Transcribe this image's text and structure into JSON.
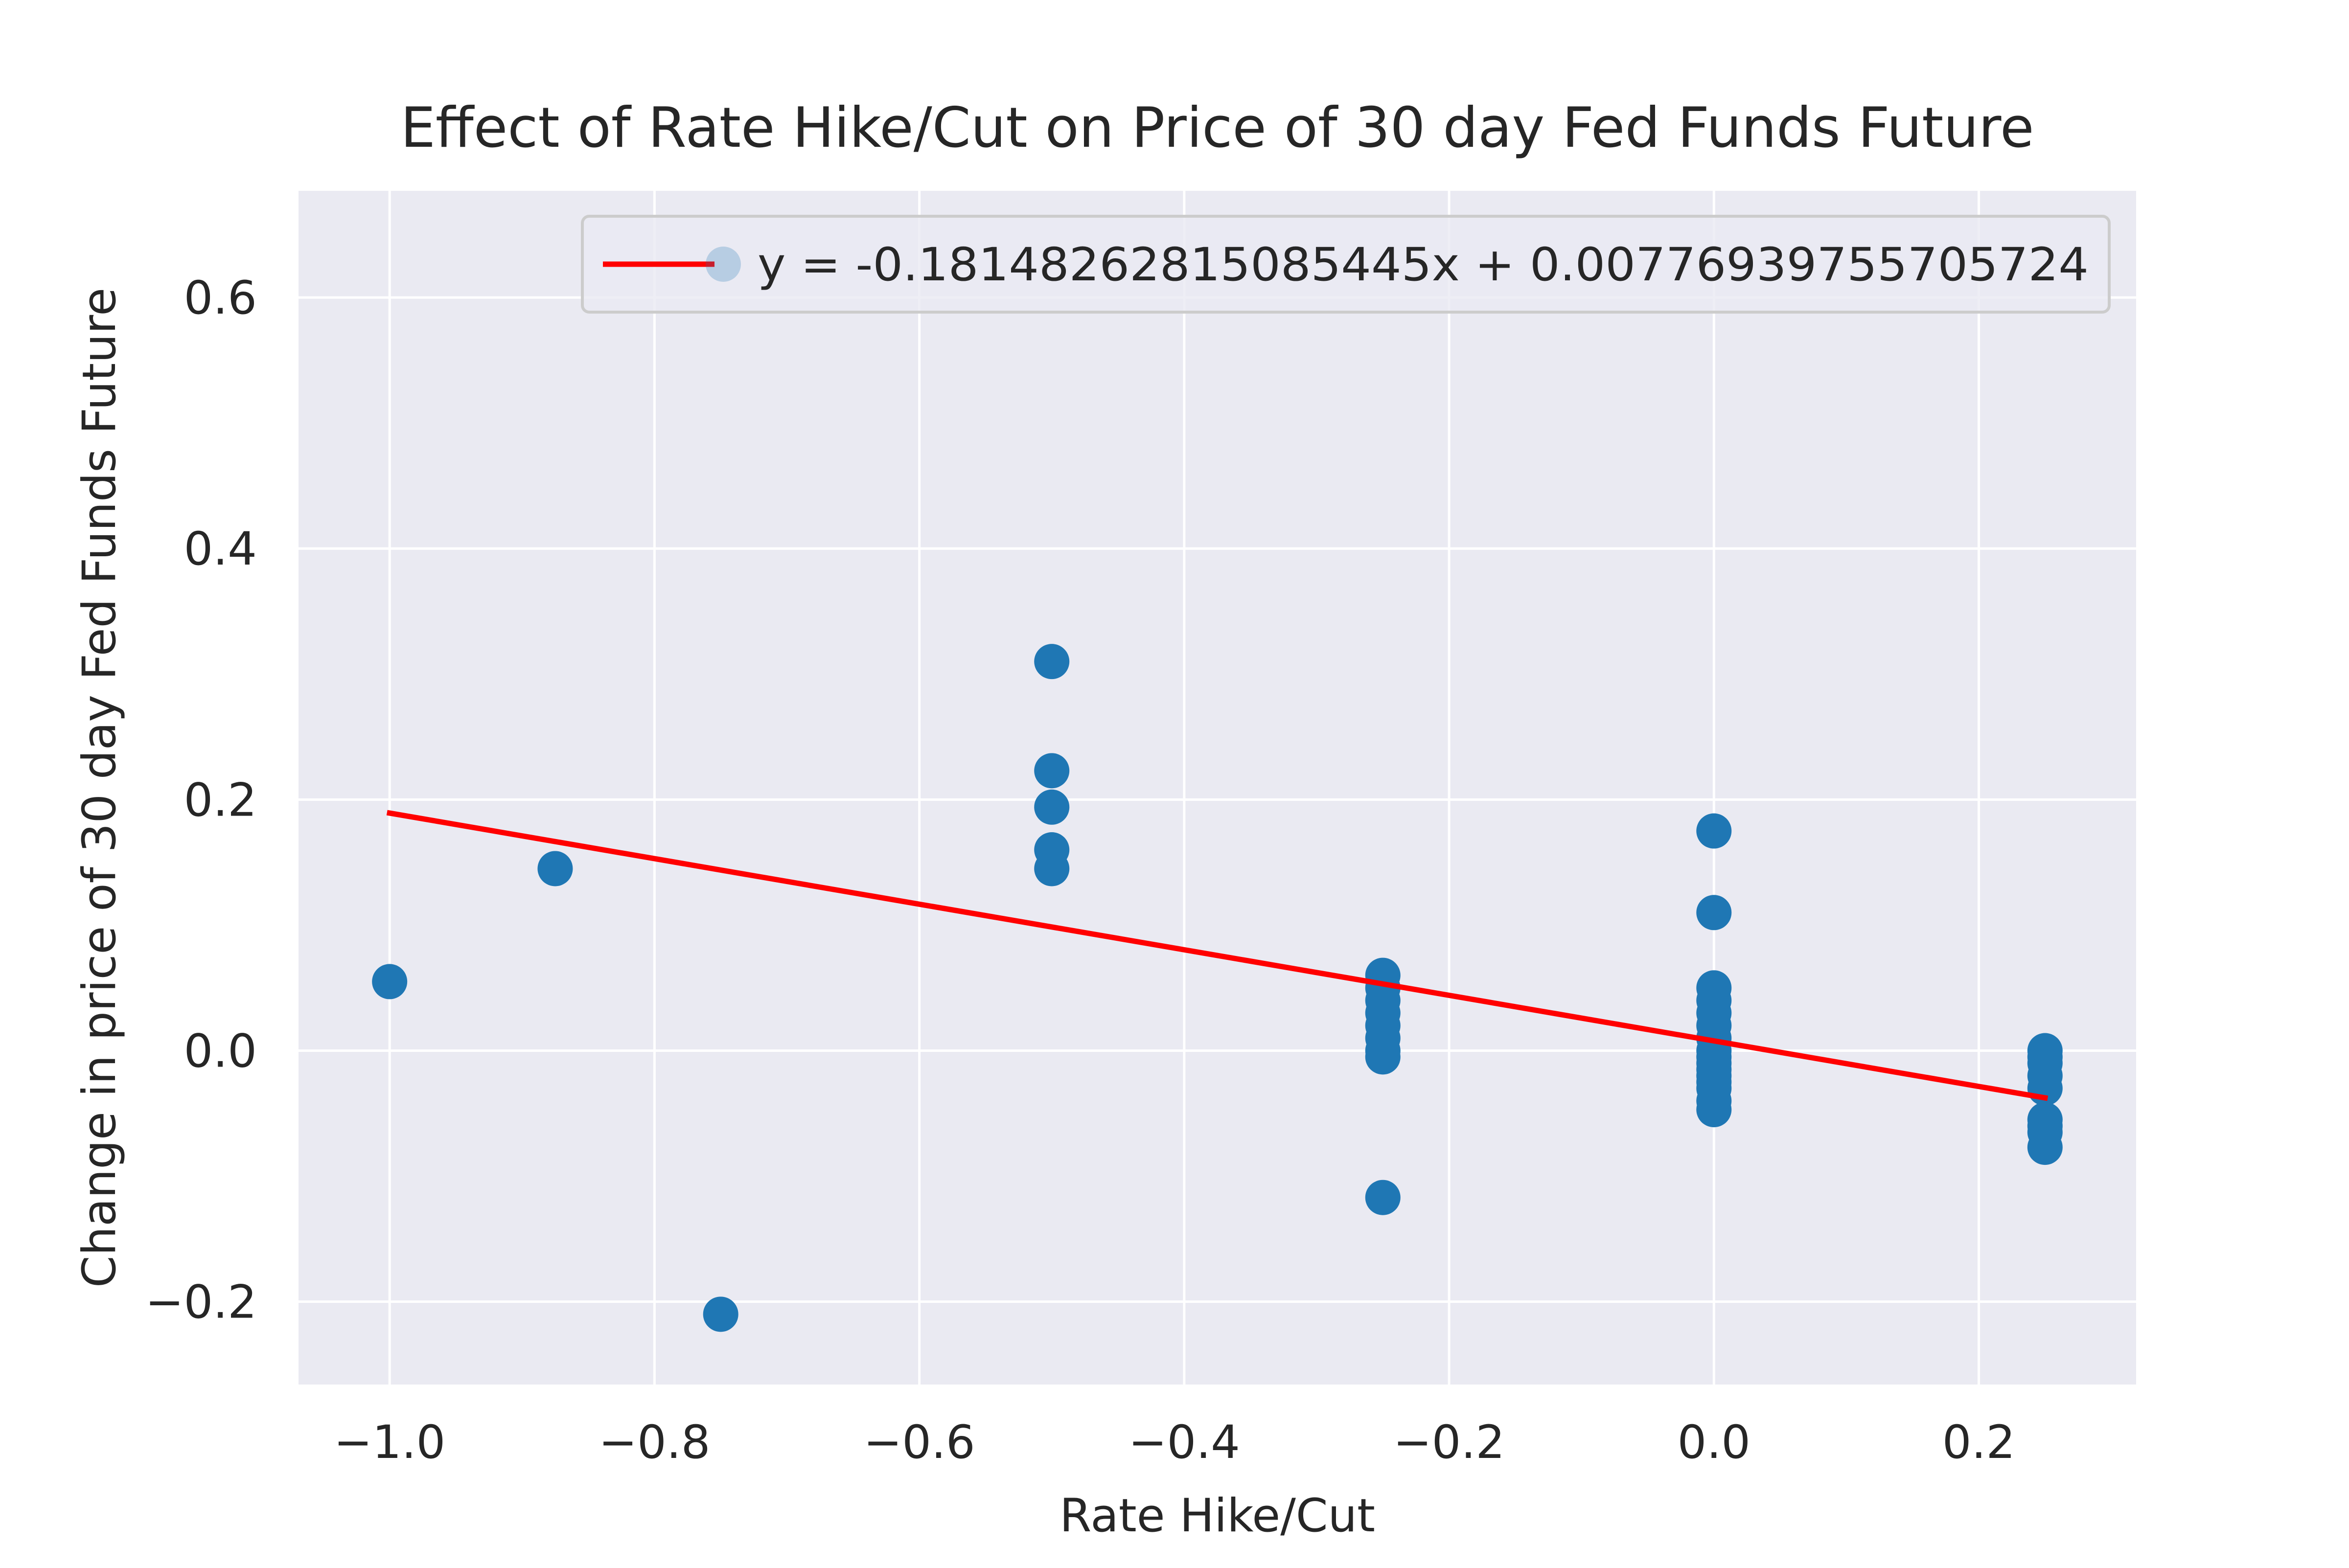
{
  "chart_data": {
    "type": "scatter",
    "title": "Effect of Rate Hike/Cut on Price of 30 day Fed Funds Future",
    "xlabel": "Rate Hike/Cut",
    "ylabel": "Change in price of 30 day Fed Funds Future",
    "xlim": [
      -1.0688,
      0.3188
    ],
    "ylim": [
      -0.266,
      0.685
    ],
    "x_ticks": [
      -1.0,
      -0.8,
      -0.6,
      -0.4,
      -0.2,
      0.0,
      0.2
    ],
    "x_tick_labels": [
      "−1.0",
      "−0.8",
      "−0.6",
      "−0.4",
      "−0.2",
      "0.0",
      "0.2"
    ],
    "y_ticks": [
      -0.2,
      0.0,
      0.2,
      0.4,
      0.6
    ],
    "y_tick_labels": [
      "−0.2",
      "0.0",
      "0.2",
      "0.4",
      "0.6"
    ],
    "grid": true,
    "legend_placement": "upper right",
    "legend_label": "y = -0.18148262815085445x + 0.007769397557057​24",
    "colors": {
      "points": "#1f77b4",
      "fit_line": "#ff0000",
      "plot_background": "#eaeaf2",
      "grid": "#ffffff"
    },
    "series": [
      {
        "kind": "points",
        "x": [
          -1.0,
          -0.875,
          -0.75,
          -0.5,
          -0.5,
          -0.5,
          -0.5,
          -0.5,
          -0.25,
          -0.25,
          -0.25,
          -0.25,
          -0.25,
          -0.25,
          -0.25,
          -0.25,
          -0.25,
          0.0,
          0.0,
          0.0,
          0.0,
          0.0,
          0.0,
          0.0,
          0.0,
          0.0,
          0.0,
          0.0,
          0.0,
          0.0,
          0.0,
          0.0,
          0.0,
          0.25,
          0.25,
          0.25,
          0.25,
          0.25,
          0.25,
          0.25,
          0.25,
          0.25
        ],
        "y": [
          0.055,
          0.145,
          -0.21,
          0.31,
          0.223,
          0.194,
          0.16,
          0.145,
          0.06,
          0.05,
          0.04,
          0.03,
          0.02,
          0.01,
          0.0,
          -0.005,
          -0.117,
          0.175,
          0.11,
          0.05,
          0.04,
          0.03,
          0.02,
          0.01,
          0.0,
          -0.005,
          -0.01,
          -0.015,
          -0.02,
          -0.025,
          -0.03,
          -0.04,
          -0.047,
          0.0,
          -0.005,
          -0.01,
          -0.02,
          -0.03,
          -0.055,
          -0.06,
          -0.065,
          -0.077
        ]
      },
      {
        "kind": "line",
        "slope": -0.18148262815085445,
        "intercept": 0.00776939755705724,
        "x_range": [
          -1.0,
          0.25
        ]
      }
    ]
  }
}
